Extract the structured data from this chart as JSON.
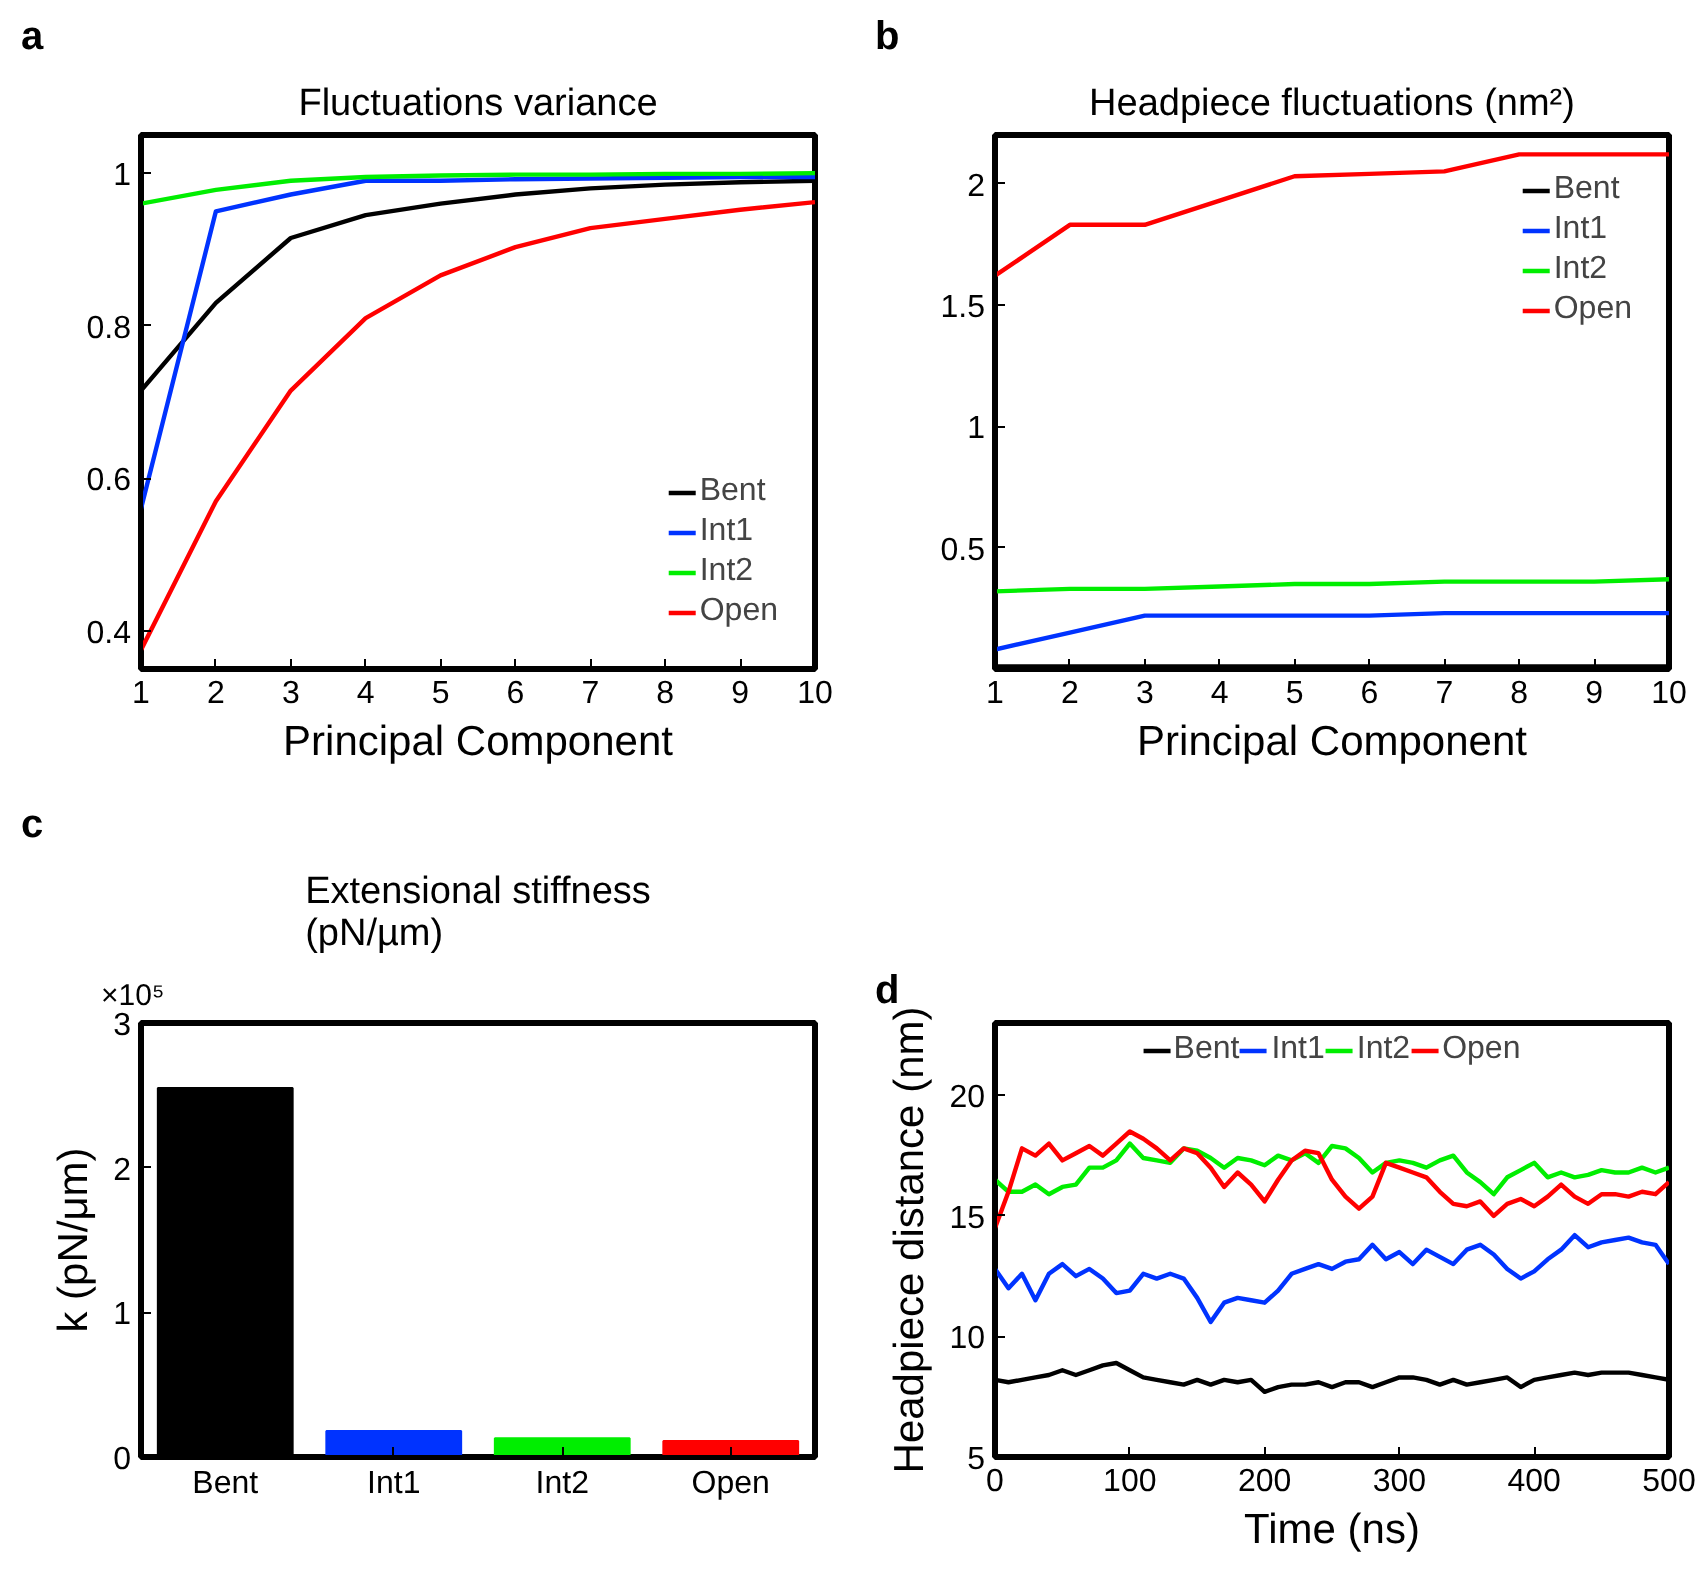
{
  "chart_data": [
    {
      "type": "line",
      "title": "Fluctuations variance",
      "xlabel": "Principal Component",
      "annotations": [
        "a"
      ],
      "x": [
        1,
        2,
        3,
        4,
        5,
        6,
        7,
        8,
        9,
        10
      ],
      "xlim": [
        1,
        10
      ],
      "xticks": [
        1,
        2,
        3,
        4,
        5,
        6,
        7,
        8,
        9,
        10
      ],
      "ylim": [
        0.35,
        1.05
      ],
      "yticks": [
        0.4,
        0.6,
        0.8,
        1
      ],
      "legend": "bottom right",
      "series": [
        {
          "name": "Bent",
          "color": "#000000",
          "values": [
            0.715,
            0.83,
            0.915,
            0.945,
            0.96,
            0.972,
            0.98,
            0.985,
            0.988,
            0.99
          ]
        },
        {
          "name": "Int1",
          "color": "#0033ff",
          "values": [
            0.56,
            0.95,
            0.972,
            0.99,
            0.99,
            0.992,
            0.993,
            0.994,
            0.995,
            0.995
          ]
        },
        {
          "name": "Int2",
          "color": "#00ee00",
          "values": [
            0.96,
            0.978,
            0.99,
            0.995,
            0.997,
            0.998,
            0.998,
            0.999,
            0.999,
            1.0
          ]
        },
        {
          "name": "Open",
          "color": "#ff0000",
          "values": [
            0.375,
            0.57,
            0.715,
            0.81,
            0.866,
            0.903,
            0.928,
            0.94,
            0.952,
            0.962
          ]
        }
      ]
    },
    {
      "type": "line",
      "title": "Headpiece fluctuations (nm²)",
      "xlabel": "Principal Component",
      "annotations": [
        "b"
      ],
      "x": [
        1,
        2,
        3,
        4,
        5,
        6,
        7,
        8,
        9,
        10
      ],
      "xlim": [
        1,
        10
      ],
      "xticks": [
        1,
        2,
        3,
        4,
        5,
        6,
        7,
        8,
        9,
        10
      ],
      "ylim": [
        0,
        2.2
      ],
      "yticks": [
        0.5,
        1,
        1.5,
        2
      ],
      "legend": "top right",
      "series": [
        {
          "name": "Bent",
          "color": "#000000",
          "values": [
            0.01,
            0.01,
            0.01,
            0.01,
            0.01,
            0.01,
            0.01,
            0.01,
            0.01,
            0.01
          ]
        },
        {
          "name": "Int1",
          "color": "#0033ff",
          "values": [
            0.08,
            0.15,
            0.22,
            0.22,
            0.22,
            0.22,
            0.23,
            0.23,
            0.23,
            0.23
          ]
        },
        {
          "name": "Int2",
          "color": "#00ee00",
          "values": [
            0.32,
            0.33,
            0.33,
            0.34,
            0.35,
            0.35,
            0.36,
            0.36,
            0.36,
            0.37
          ]
        },
        {
          "name": "Open",
          "color": "#ff0000",
          "values": [
            1.62,
            1.83,
            1.83,
            1.93,
            2.03,
            2.04,
            2.05,
            2.12,
            2.12,
            2.12
          ]
        }
      ]
    },
    {
      "type": "bar",
      "title": "Extensional stiffness\n(pN/µm)",
      "ylabel": "k (pN/μm)",
      "annotations": [
        "c",
        "×10⁵"
      ],
      "categories": [
        "Bent",
        "Int1",
        "Int2",
        "Open"
      ],
      "values": [
        2.55,
        0.18,
        0.13,
        0.11
      ],
      "colors": [
        "#000000",
        "#0033ff",
        "#00ee00",
        "#ff0000"
      ],
      "ylim": [
        0,
        3
      ],
      "yticks": [
        0,
        1,
        2,
        3
      ]
    },
    {
      "type": "line",
      "xlabel": "Time (ns)",
      "ylabel": "Headpiece distance (nm)",
      "annotations": [
        "d"
      ],
      "xlim": [
        0,
        500
      ],
      "xticks": [
        0,
        100,
        200,
        300,
        400,
        500
      ],
      "ylim": [
        5,
        23
      ],
      "yticks": [
        5,
        10,
        15,
        20
      ],
      "legend": "top",
      "x": [
        0,
        10,
        20,
        30,
        40,
        50,
        60,
        70,
        80,
        90,
        100,
        110,
        120,
        130,
        140,
        150,
        160,
        170,
        180,
        190,
        200,
        210,
        220,
        230,
        240,
        250,
        260,
        270,
        280,
        290,
        300,
        310,
        320,
        330,
        340,
        350,
        360,
        370,
        380,
        390,
        400,
        410,
        420,
        430,
        440,
        450,
        460,
        470,
        480,
        490,
        500
      ],
      "series": [
        {
          "name": "Bent",
          "color": "#000000",
          "values": [
            8.2,
            8.1,
            8.2,
            8.3,
            8.4,
            8.6,
            8.4,
            8.6,
            8.8,
            8.9,
            8.6,
            8.3,
            8.2,
            8.1,
            8.0,
            8.2,
            8.0,
            8.2,
            8.1,
            8.2,
            7.7,
            7.9,
            8.0,
            8.0,
            8.1,
            7.9,
            8.1,
            8.1,
            7.9,
            8.1,
            8.3,
            8.3,
            8.2,
            8.0,
            8.2,
            8.0,
            8.1,
            8.2,
            8.3,
            7.9,
            8.2,
            8.3,
            8.4,
            8.5,
            8.4,
            8.5,
            8.5,
            8.5,
            8.4,
            8.3,
            8.2
          ]
        },
        {
          "name": "Int1",
          "color": "#0033ff",
          "values": [
            12.8,
            12.0,
            12.6,
            11.5,
            12.6,
            13.0,
            12.5,
            12.8,
            12.4,
            11.8,
            11.9,
            12.6,
            12.4,
            12.6,
            12.4,
            11.6,
            10.6,
            11.4,
            11.6,
            11.5,
            11.4,
            11.9,
            12.6,
            12.8,
            13.0,
            12.8,
            13.1,
            13.2,
            13.8,
            13.2,
            13.5,
            13.0,
            13.6,
            13.3,
            13.0,
            13.6,
            13.8,
            13.4,
            12.8,
            12.4,
            12.7,
            13.2,
            13.6,
            14.2,
            13.7,
            13.9,
            14.0,
            14.1,
            13.9,
            13.8,
            13.0
          ]
        },
        {
          "name": "Int2",
          "color": "#00ee00",
          "values": [
            16.5,
            16.0,
            16.0,
            16.3,
            15.9,
            16.2,
            16.3,
            17.0,
            17.0,
            17.3,
            18.0,
            17.4,
            17.3,
            17.2,
            17.8,
            17.7,
            17.4,
            17.0,
            17.4,
            17.3,
            17.1,
            17.5,
            17.3,
            17.6,
            17.2,
            17.9,
            17.8,
            17.4,
            16.8,
            17.2,
            17.3,
            17.2,
            17.0,
            17.3,
            17.5,
            16.8,
            16.4,
            15.9,
            16.6,
            16.9,
            17.2,
            16.6,
            16.8,
            16.6,
            16.7,
            16.9,
            16.8,
            16.8,
            17.0,
            16.8,
            17.0
          ]
        },
        {
          "name": "Open",
          "color": "#ff0000",
          "values": [
            14.5,
            16.0,
            17.8,
            17.5,
            18.0,
            17.3,
            17.6,
            17.9,
            17.5,
            18.0,
            18.5,
            18.2,
            17.8,
            17.3,
            17.8,
            17.6,
            17.0,
            16.2,
            16.8,
            16.3,
            15.6,
            16.5,
            17.3,
            17.7,
            17.6,
            16.5,
            15.8,
            15.3,
            15.8,
            17.2,
            17.0,
            16.8,
            16.6,
            16.0,
            15.5,
            15.4,
            15.6,
            15.0,
            15.5,
            15.7,
            15.4,
            15.8,
            16.3,
            15.8,
            15.5,
            15.9,
            15.9,
            15.8,
            16.0,
            15.9,
            16.4
          ]
        }
      ]
    }
  ]
}
